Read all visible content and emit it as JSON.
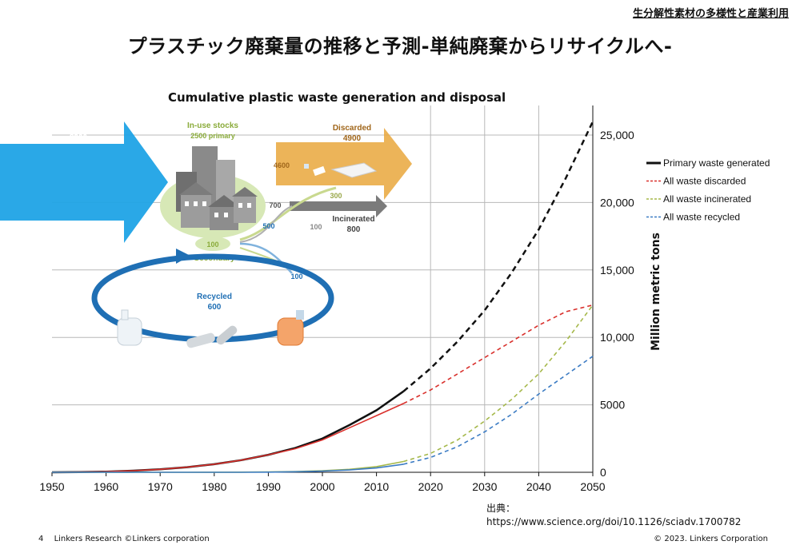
{
  "header": {
    "tag": "生分解性素材の多様性と産業利用",
    "title": "プラスチック廃棄量の推移と予測-単純廃棄からリサイクルへ-"
  },
  "footer": {
    "page_number": "4",
    "left_text": "Linkers Research ©Linkers corporation",
    "right_text": "© 2023. Linkers Corporation"
  },
  "source": {
    "label": "出典：",
    "url": "https://www.science.org/doi/10.1126/sciadv.1700782"
  },
  "diagram": {
    "primary_production_label": "Primary production",
    "primary_production_value": "8300",
    "in_use_label": "In-use stocks",
    "in_use_value": "2500 primary",
    "discarded_label": "Discarded",
    "discarded_value": "4900",
    "discarded_side_value": "4600",
    "flow_300": "300",
    "flow_700": "700",
    "flow_500": "500",
    "flow_100a": "100",
    "incinerated_label": "Incinerated",
    "incinerated_value": "800",
    "secondary_value": "100",
    "secondary_label": "Secondary",
    "flow_100b": "100",
    "recycled_label": "Recycled",
    "recycled_value": "600"
  },
  "colors": {
    "primary": "#111111",
    "discarded": "#d9302c",
    "incinerated": "#a5b84a",
    "recycled": "#3c7cc4",
    "blue_arrow": "#1fa3e6",
    "orange_arrow": "#e9a73c",
    "green_blob": "#d7e8b6",
    "recycle_ring": "#1f6fb4"
  },
  "chart_data": {
    "type": "line",
    "title": "Cumulative plastic waste generation and disposal",
    "xlabel": "",
    "ylabel": "Million metric tons",
    "xlim": [
      1950,
      2050
    ],
    "ylim": [
      0,
      25000
    ],
    "x_ticks": [
      "1950",
      "1960",
      "1970",
      "1980",
      "1990",
      "2000",
      "2010",
      "2020",
      "2030",
      "2040",
      "2050"
    ],
    "y_ticks": [
      "0",
      "5000",
      "10,000",
      "15,000",
      "20,000",
      "25,000"
    ],
    "historical_end": 2015,
    "legend_position": "right",
    "x": [
      1950,
      1955,
      1960,
      1965,
      1970,
      1975,
      1980,
      1985,
      1990,
      1995,
      2000,
      2005,
      2010,
      2015,
      2020,
      2025,
      2030,
      2035,
      2040,
      2045,
      2050
    ],
    "series": [
      {
        "name": "Primary waste generated",
        "color": "#111111",
        "values": [
          0,
          20,
          50,
          120,
          220,
          380,
          600,
          900,
          1300,
          1800,
          2500,
          3500,
          4600,
          6000,
          7700,
          9700,
          12000,
          14800,
          18000,
          21800,
          26000
        ]
      },
      {
        "name": "All waste discarded",
        "color": "#d9302c",
        "values": [
          0,
          20,
          50,
          120,
          220,
          380,
          600,
          900,
          1300,
          1750,
          2400,
          3300,
          4200,
          5100,
          6100,
          7300,
          8500,
          9700,
          10900,
          11900,
          12400
        ]
      },
      {
        "name": "All waste incinerated",
        "color": "#a5b84a",
        "values": [
          0,
          0,
          0,
          0,
          0,
          0,
          5,
          10,
          30,
          60,
          110,
          220,
          420,
          800,
          1400,
          2400,
          3800,
          5400,
          7300,
          9700,
          12400
        ]
      },
      {
        "name": "All waste recycled",
        "color": "#3c7cc4",
        "values": [
          0,
          0,
          0,
          0,
          0,
          0,
          0,
          0,
          10,
          40,
          90,
          170,
          320,
          600,
          1100,
          1900,
          3000,
          4300,
          5800,
          7200,
          8600
        ]
      }
    ]
  }
}
